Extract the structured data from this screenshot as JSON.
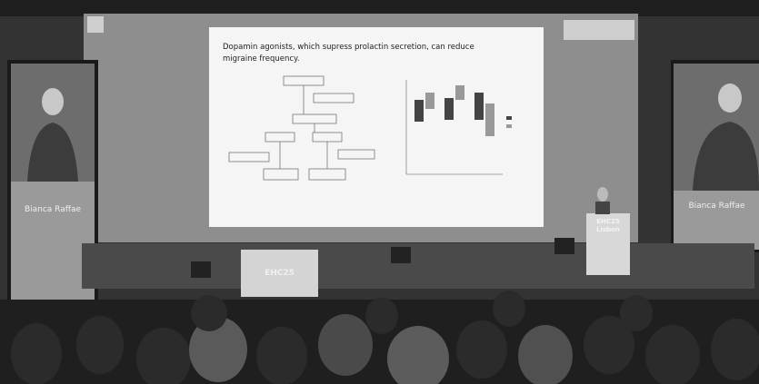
{
  "slide": {
    "title": "Dopamin agonists, which supress prolactin secretion, can reduce migraine frequency."
  },
  "left_screen": {
    "name": "Bianca Raffae"
  },
  "right_screen": {
    "name": "Bianca Raffae"
  },
  "podium": {
    "lines": [
      "EHC25",
      "Lisbon"
    ]
  },
  "desk": {
    "label": "EHC25"
  }
}
